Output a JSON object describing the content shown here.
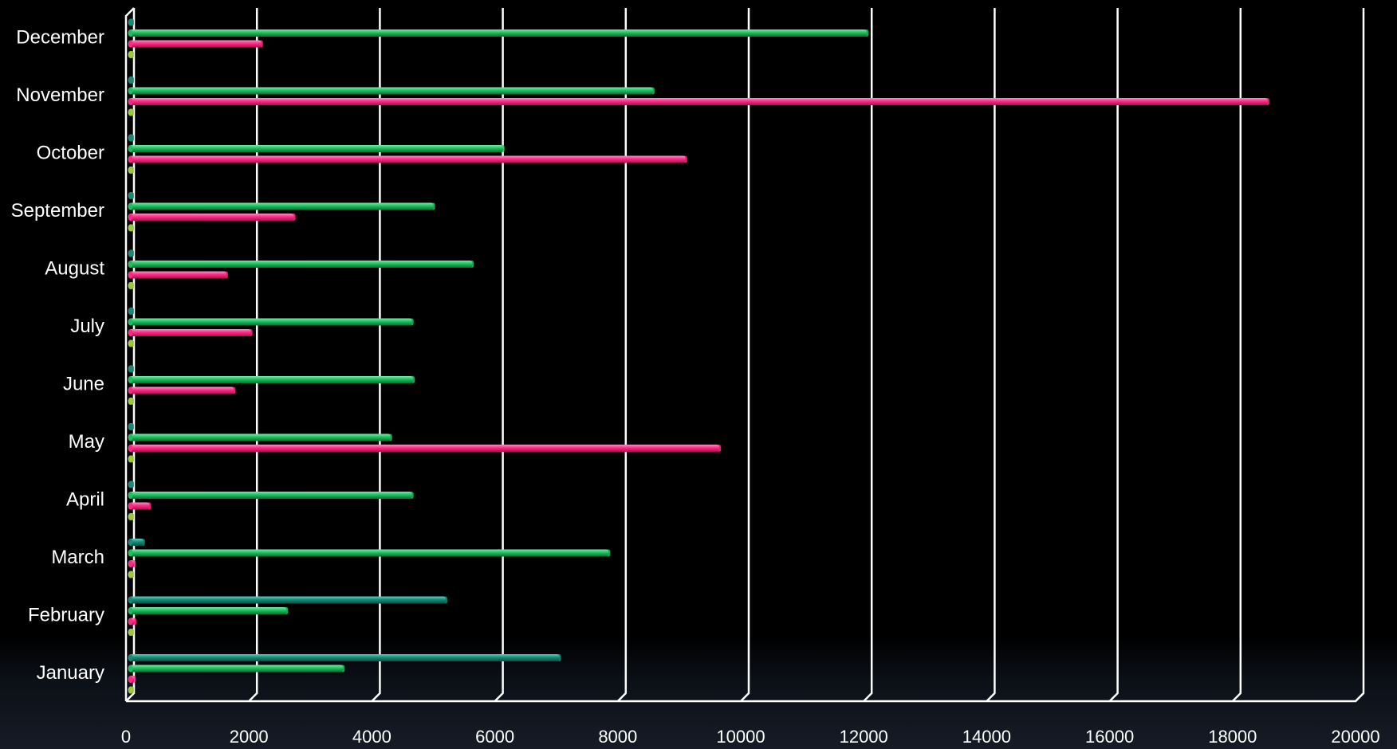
{
  "chart_data": {
    "type": "bar",
    "orientation": "horizontal",
    "categories": [
      "January",
      "February",
      "March",
      "April",
      "May",
      "June",
      "July",
      "August",
      "September",
      "October",
      "November",
      "December"
    ],
    "series": [
      {
        "color": "#1a8a78",
        "values": [
          7000,
          5150,
          230,
          0,
          0,
          0,
          0,
          0,
          0,
          0,
          0,
          0
        ]
      },
      {
        "color": "#1fbf5f",
        "values": [
          3480,
          2560,
          7800,
          4600,
          4250,
          4620,
          4600,
          5580,
          4950,
          6080,
          8520,
          12000
        ]
      },
      {
        "color": "#ff2a86",
        "values": [
          80,
          90,
          80,
          330,
          9600,
          1700,
          1980,
          1580,
          2680,
          9050,
          18520,
          2150
        ]
      },
      {
        "color": "#9ccc3a",
        "values": [
          20,
          20,
          20,
          20,
          20,
          20,
          20,
          20,
          20,
          20,
          20,
          20
        ]
      }
    ],
    "xlim": [
      0,
      20000
    ],
    "x_ticks": [
      "0",
      "2000",
      "4000",
      "6000",
      "8000",
      "10000",
      "12000",
      "14000",
      "16000",
      "18000",
      "20000"
    ],
    "grid": true,
    "legend": "none"
  }
}
